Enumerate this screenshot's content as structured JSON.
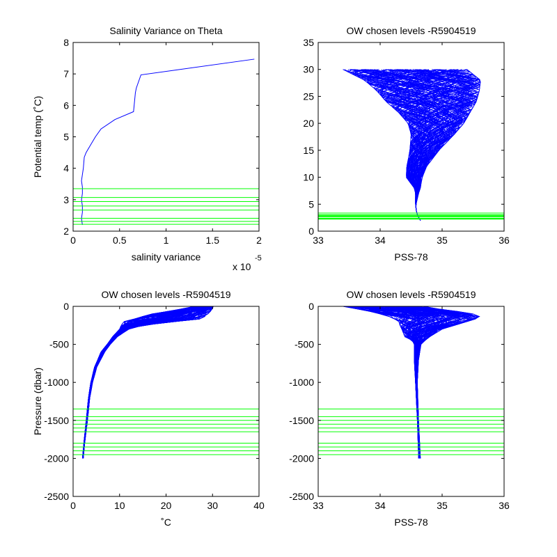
{
  "chart_data": [
    {
      "id": "p1",
      "type": "line",
      "title": "Salinity Variance on Theta",
      "xlabel": "salinity variance",
      "ylabel": "Potential temp (˚C)",
      "x_multiplier_label": "x 10",
      "x_multiplier_exp": "-5",
      "xlim": [
        0,
        2
      ],
      "ylim": [
        2,
        8
      ],
      "xticks": [
        0,
        0.5,
        1,
        1.5,
        2
      ],
      "xticklabels": [
        "0",
        "0.5",
        "1",
        "1.5",
        "2"
      ],
      "yticks": [
        2,
        3,
        4,
        5,
        6,
        7,
        8
      ],
      "yticklabels": [
        "2",
        "3",
        "4",
        "5",
        "6",
        "7",
        "8"
      ],
      "grid": false,
      "series": [
        {
          "color": "#0000ff",
          "x": [
            0.1,
            0.09,
            0.1,
            0.1,
            0.09,
            0.1,
            0.1,
            0.09,
            0.1,
            0.11,
            0.12,
            0.14,
            0.18,
            0.24,
            0.3,
            0.45,
            0.65,
            0.67,
            0.68,
            0.73,
            1.95
          ],
          "y": [
            2.2,
            2.4,
            2.6,
            2.8,
            3.0,
            3.2,
            3.4,
            3.6,
            3.8,
            4.0,
            4.35,
            4.5,
            4.7,
            5.0,
            5.25,
            5.55,
            5.8,
            6.4,
            6.55,
            6.97,
            7.47
          ]
        }
      ],
      "hlines": {
        "color": "#00ff00",
        "y": [
          2.22,
          2.31,
          2.41,
          2.67,
          2.8,
          2.94,
          3.07,
          3.35
        ]
      }
    },
    {
      "id": "p2",
      "type": "line",
      "title": "OW chosen levels -R5904519",
      "xlabel": "PSS-78",
      "ylabel": "",
      "xlim": [
        33,
        36
      ],
      "ylim": [
        0,
        35
      ],
      "xticks": [
        33,
        34,
        35,
        36
      ],
      "xticklabels": [
        "33",
        "34",
        "35",
        "36"
      ],
      "yticks": [
        0,
        5,
        10,
        15,
        20,
        25,
        30,
        35
      ],
      "yticklabels": [
        "0",
        "5",
        "10",
        "15",
        "20",
        "25",
        "30",
        "35"
      ],
      "grid": false,
      "profiles": {
        "color": "#0000ff",
        "count": 120,
        "depth_y": [
          2.0,
          3.0,
          4.0,
          5.0,
          7.0,
          8.0,
          10.0,
          12.0,
          15.0,
          18.0,
          20.0,
          22.0,
          24.0,
          26.0,
          28.0,
          30.0
        ],
        "x_min": [
          34.65,
          34.6,
          34.58,
          34.57,
          34.57,
          34.55,
          34.42,
          34.43,
          34.48,
          34.5,
          34.45,
          34.3,
          34.1,
          33.95,
          33.75,
          33.4
        ],
        "x_max": [
          34.65,
          34.6,
          34.58,
          34.58,
          34.62,
          34.65,
          34.68,
          34.75,
          34.95,
          35.2,
          35.35,
          35.45,
          35.55,
          35.6,
          35.62,
          35.4
        ]
      },
      "hlines": {
        "color": "#00ff00",
        "y": [
          2.22,
          2.31,
          2.41,
          2.67,
          2.8,
          2.94,
          3.07,
          3.35
        ]
      }
    },
    {
      "id": "p3",
      "type": "line",
      "title": "OW chosen levels -R5904519",
      "xlabel": "˚C",
      "ylabel": "Pressure (dbar)",
      "xlim": [
        0,
        40
      ],
      "ylim": [
        -2500,
        0
      ],
      "xticks": [
        0,
        10,
        20,
        30,
        40
      ],
      "xticklabels": [
        "0",
        "10",
        "20",
        "30",
        "40"
      ],
      "yticks": [
        0,
        -500,
        -1000,
        -1500,
        -2000,
        -2500
      ],
      "yticklabels": [
        "0",
        "-500",
        "-1000",
        "-1500",
        "-2000",
        "-2500"
      ],
      "grid": false,
      "profiles": {
        "color": "#0000ff",
        "count": 120,
        "depth_y": [
          -2000,
          -1800,
          -1500,
          -1200,
          -1000,
          -800,
          -600,
          -500,
          -400,
          -300,
          -250,
          -200,
          -180,
          -150,
          -100,
          -50,
          0
        ],
        "x_min": [
          2.0,
          2.3,
          2.8,
          3.3,
          3.8,
          4.6,
          6.0,
          7.3,
          8.5,
          10.0,
          10.3,
          11.0,
          12.5,
          14.0,
          17.0,
          22.0,
          26.0
        ],
        "x_max": [
          2.2,
          2.5,
          3.1,
          3.6,
          4.2,
          5.1,
          6.8,
          8.0,
          9.5,
          12.0,
          15.0,
          22.0,
          26.5,
          28.0,
          29.0,
          29.8,
          30.2
        ]
      },
      "hlines": {
        "color": "#00ff00",
        "y": [
          -1350,
          -1450,
          -1500,
          -1550,
          -1600,
          -1650,
          -1800,
          -1850,
          -1900,
          -1950
        ]
      }
    },
    {
      "id": "p4",
      "type": "line",
      "title": "OW chosen levels -R5904519",
      "xlabel": "PSS-78",
      "ylabel": "",
      "xlim": [
        33,
        36
      ],
      "ylim": [
        -2500,
        0
      ],
      "xticks": [
        33,
        34,
        35,
        36
      ],
      "xticklabels": [
        "33",
        "34",
        "35",
        "36"
      ],
      "yticks": [
        0,
        -500,
        -1000,
        -1500,
        -2000,
        -2500
      ],
      "yticklabels": [
        "0",
        "-500",
        "-1000",
        "-1500",
        "-2000",
        "-2500"
      ],
      "grid": false,
      "profiles": {
        "color": "#0000ff",
        "count": 120,
        "depth_y": [
          -2000,
          -1500,
          -1000,
          -700,
          -500,
          -450,
          -400,
          -300,
          -250,
          -200,
          -150,
          -120,
          -100,
          -60,
          -30,
          0
        ],
        "x_min": [
          34.62,
          34.6,
          34.57,
          34.55,
          34.55,
          34.52,
          34.4,
          34.35,
          34.32,
          34.3,
          34.2,
          34.1,
          34.0,
          33.8,
          33.6,
          33.4
        ],
        "x_max": [
          34.65,
          34.62,
          34.6,
          34.62,
          34.66,
          34.72,
          34.8,
          35.0,
          35.2,
          35.4,
          35.6,
          35.6,
          35.5,
          35.2,
          34.9,
          34.7
        ]
      },
      "hlines": {
        "color": "#00ff00",
        "y": [
          -1350,
          -1450,
          -1500,
          -1550,
          -1600,
          -1650,
          -1800,
          -1850,
          -1900,
          -1950
        ]
      }
    }
  ]
}
